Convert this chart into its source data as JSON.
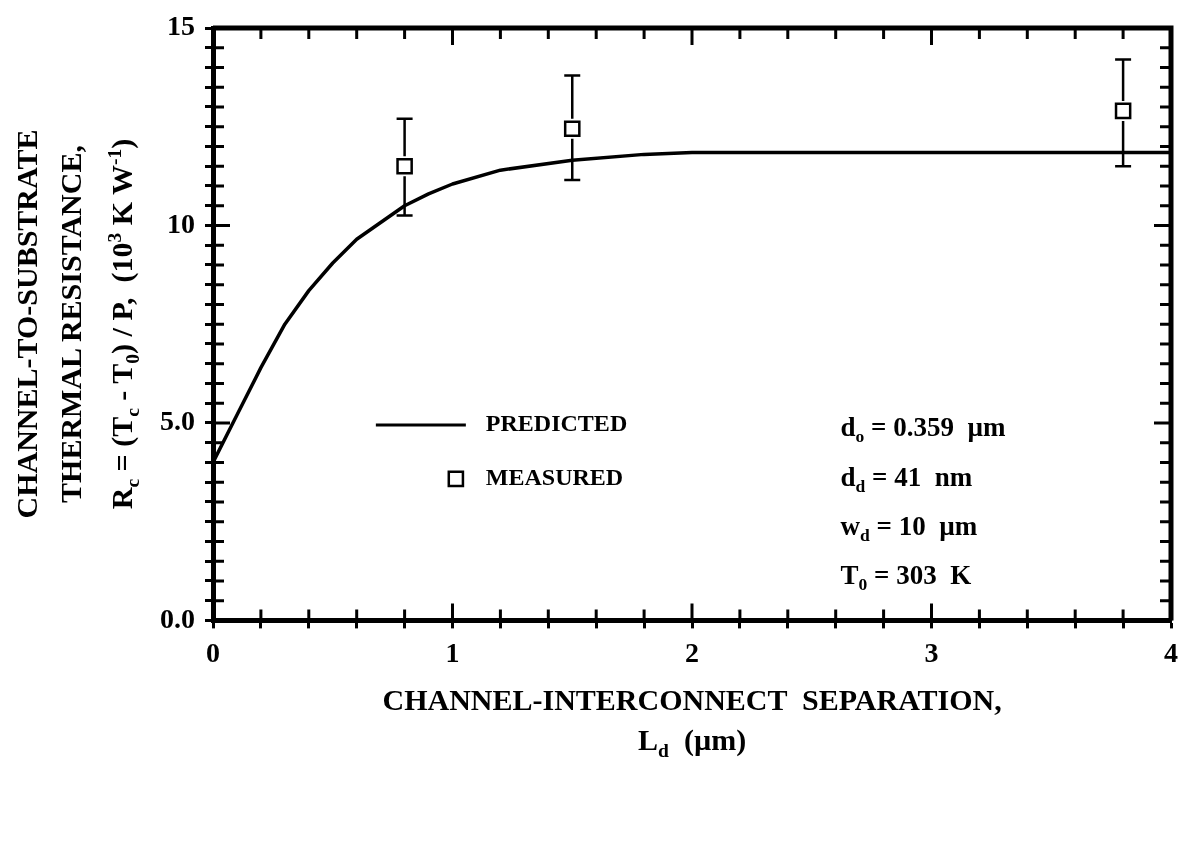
{
  "chart_data": {
    "type": "line",
    "ylabel": "CHANNEL-TO-SUBSTRATE\nTHERMAL RESISTANCE,\nR$_{c}$ = (T$_{c}$ - T$_{0}$) / P,  (10$^{3}$ K W$^{-1}$)",
    "xlabel": "CHANNEL-INTERCONNECT  SEPARATION,\nL$_{d}$  (µm)",
    "xlim": [
      0,
      4
    ],
    "xticks": [
      0,
      {
        "value": 0.2,
        "label": null
      },
      {
        "value": 0.4,
        "label": null
      },
      {
        "value": 0.6,
        "label": null
      },
      {
        "value": 0.8,
        "label": null
      },
      1,
      {
        "value": 1.2,
        "label": null
      },
      {
        "value": 1.4,
        "label": null
      },
      {
        "value": 1.6,
        "label": null
      },
      {
        "value": 1.8,
        "label": null
      },
      2,
      {
        "value": 2.2,
        "label": null
      },
      {
        "value": 2.4,
        "label": null
      },
      {
        "value": 2.6,
        "label": null
      },
      {
        "value": 2.8,
        "label": null
      },
      3,
      {
        "value": 3.2,
        "label": null
      },
      {
        "value": 3.4,
        "label": null
      },
      {
        "value": 3.6,
        "label": null
      },
      {
        "value": 3.8,
        "label": null
      },
      4
    ],
    "ylim": [
      0,
      15
    ],
    "yticks": [
      {
        "value": 0,
        "label": "0.0"
      },
      {
        "value": 0.5,
        "label": null
      },
      {
        "value": 1,
        "label": null
      },
      {
        "value": 1.5,
        "label": null
      },
      {
        "value": 2,
        "label": null
      },
      {
        "value": 2.5,
        "label": null
      },
      {
        "value": 3,
        "label": null
      },
      {
        "value": 3.5,
        "label": null
      },
      {
        "value": 4,
        "label": null
      },
      {
        "value": 4.5,
        "label": null
      },
      {
        "value": 5,
        "label": "5.0"
      },
      {
        "value": 5.5,
        "label": null
      },
      {
        "value": 6,
        "label": null
      },
      {
        "value": 6.5,
        "label": null
      },
      {
        "value": 7,
        "label": null
      },
      {
        "value": 7.5,
        "label": null
      },
      {
        "value": 8,
        "label": null
      },
      {
        "value": 8.5,
        "label": null
      },
      {
        "value": 9,
        "label": null
      },
      {
        "value": 9.5,
        "label": null
      },
      10,
      {
        "value": 10.5,
        "label": null
      },
      {
        "value": 11,
        "label": null
      },
      {
        "value": 11.5,
        "label": null
      },
      {
        "value": 12,
        "label": null
      },
      {
        "value": 12.5,
        "label": null
      },
      {
        "value": 13,
        "label": null
      },
      {
        "value": 13.5,
        "label": null
      },
      {
        "value": 14,
        "label": null
      },
      {
        "value": 14.5,
        "label": null
      },
      15
    ],
    "grid": false,
    "legend": "center left",
    "series": [
      {
        "name": "PREDICTED",
        "type": "line",
        "color": "#000000",
        "marker": "none",
        "line_style": "solid",
        "x": [
          0,
          0.1,
          0.2,
          0.3,
          0.4,
          0.5,
          0.6,
          0.8,
          0.9,
          1.0,
          1.2,
          1.5,
          1.8,
          2.0,
          2.5,
          3.0,
          4.0
        ],
        "values": [
          4.0,
          5.2,
          6.4,
          7.5,
          8.35,
          9.05,
          9.65,
          10.5,
          10.8,
          11.05,
          11.4,
          11.65,
          11.8,
          11.85,
          11.85,
          11.85,
          11.85
        ]
      },
      {
        "name": "MEASURED",
        "type": "scatter",
        "color": "#000000",
        "marker": "square",
        "x": [
          0.8,
          1.5,
          3.8
        ],
        "values": [
          11.5,
          12.45,
          12.9
        ],
        "errors": [
          [
            10.25,
            12.7
          ],
          [
            11.15,
            13.8
          ],
          [
            11.5,
            14.2
          ]
        ]
      }
    ],
    "annotations": [
      "d$_{o}$ = 0.359  µm",
      "d$_{d}$ = 41  nm",
      "w$_{d}$ = 10  µm",
      "T$_{0}$ = 303  K"
    ]
  }
}
